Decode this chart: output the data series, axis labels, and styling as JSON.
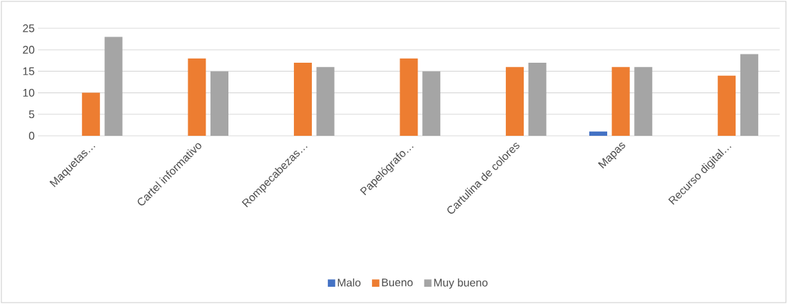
{
  "chart_data": {
    "type": "bar",
    "categories": [
      "Maquetas…",
      "Cartel informativo",
      "Rompecabezas…",
      "Papelógrafo…",
      "Cartulina de colores",
      "Mapas",
      "Recurso digital…"
    ],
    "series": [
      {
        "name": "Malo",
        "color": "#4472c4",
        "values": [
          0,
          0,
          0,
          0,
          0,
          1,
          0
        ]
      },
      {
        "name": "Bueno",
        "color": "#ed7d31",
        "values": [
          10,
          18,
          17,
          18,
          16,
          16,
          14
        ]
      },
      {
        "name": "Muy bueno",
        "color": "#a5a5a5",
        "values": [
          23,
          15,
          16,
          15,
          17,
          16,
          19
        ]
      }
    ],
    "ylim": [
      0,
      25
    ],
    "yticks": [
      0,
      5,
      10,
      15,
      20,
      25
    ],
    "grid": "y",
    "legend": "bottom"
  }
}
